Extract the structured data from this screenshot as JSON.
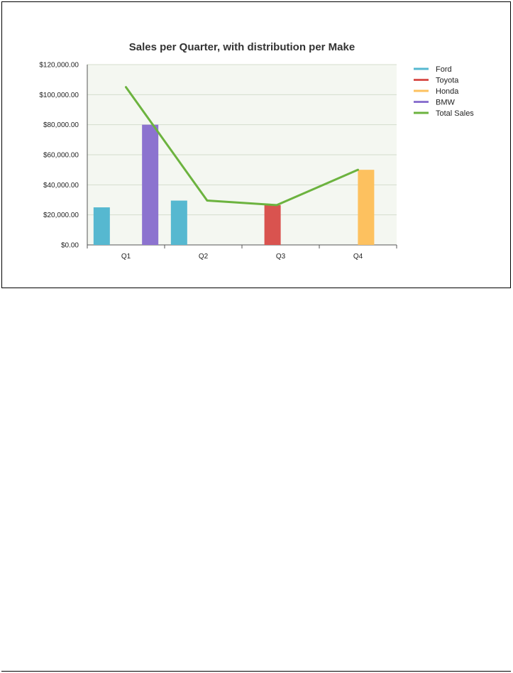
{
  "chart_data": {
    "type": "bar",
    "title": "Sales per Quarter, with distribution per Make",
    "categories": [
      "Q1",
      "Q2",
      "Q3",
      "Q4"
    ],
    "ylim": [
      0,
      120000
    ],
    "yticks": [
      0,
      20000,
      40000,
      60000,
      80000,
      100000,
      120000
    ],
    "ytick_labels": [
      "$0.00",
      "$20,000.00",
      "$40,000.00",
      "$60,000.00",
      "$80,000.00",
      "$100,000.00",
      "$120,000.00"
    ],
    "grid": true,
    "legend_position": "right",
    "series": [
      {
        "name": "Ford",
        "type": "bar",
        "color": "#56b8d0",
        "values": [
          25000,
          29500,
          0,
          0
        ]
      },
      {
        "name": "Toyota",
        "type": "bar",
        "color": "#d9534f",
        "values": [
          0,
          0,
          26500,
          0
        ]
      },
      {
        "name": "Honda",
        "type": "bar",
        "color": "#fdc15f",
        "values": [
          0,
          0,
          0,
          50000
        ]
      },
      {
        "name": "BMW",
        "type": "bar",
        "color": "#8c73cf",
        "values": [
          80000,
          0,
          0,
          0
        ]
      },
      {
        "name": "Total Sales",
        "type": "line",
        "color": "#6cb33f",
        "values": [
          105000,
          29500,
          26500,
          50000
        ]
      }
    ]
  }
}
